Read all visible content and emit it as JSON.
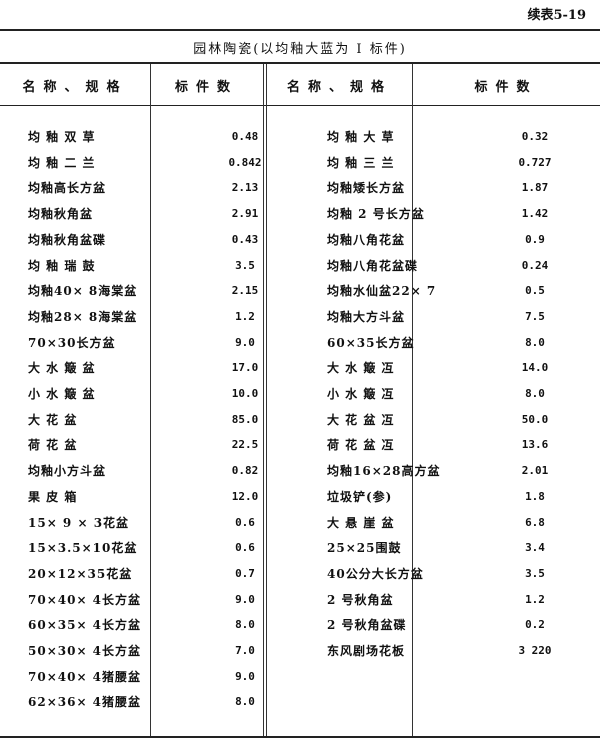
{
  "table_label": "续表5-19",
  "title": "园林陶瓷(以均釉大蓝为 I 标件)",
  "headers": {
    "name": "名称、规格",
    "value": "标件数"
  },
  "left_rows": [
    {
      "name": "均 釉 双 草",
      "value": "0.48"
    },
    {
      "name": "均 釉 二 兰",
      "value": "0.842"
    },
    {
      "name": "均釉高长方盆",
      "value": "2.13"
    },
    {
      "name": "均釉秋角盆",
      "value": "2.91"
    },
    {
      "name": "均釉秋角盆碟",
      "value": "0.43"
    },
    {
      "name": "均 釉 瑞 鼓",
      "value": "3.5"
    },
    {
      "name": "均釉40× 8海棠盆",
      "value": "2.15"
    },
    {
      "name": "均釉28× 8海棠盆",
      "value": "1.2"
    },
    {
      "name": "70×30长方盆",
      "value": "9.0"
    },
    {
      "name": "大 水 簸 盆",
      "value": "17.0"
    },
    {
      "name": "小 水 簸 盆",
      "value": "10.0"
    },
    {
      "name": "大  花  盆",
      "value": "85.0"
    },
    {
      "name": "荷  花  盆",
      "value": "22.5"
    },
    {
      "name": "均釉小方斗盆",
      "value": "0.82"
    },
    {
      "name": "果  皮  箱",
      "value": "12.0"
    },
    {
      "name": "15× 9 × 3花盆",
      "value": "0.6"
    },
    {
      "name": "15×3.5×10花盆",
      "value": "0.6"
    },
    {
      "name": "20×12×35花盆",
      "value": "0.7"
    },
    {
      "name": "70×40× 4长方盆",
      "value": "9.0"
    },
    {
      "name": "60×35× 4长方盆",
      "value": "8.0"
    },
    {
      "name": "50×30× 4长方盆",
      "value": "7.0"
    },
    {
      "name": "70×40× 4猪腰盆",
      "value": "9.0"
    },
    {
      "name": "62×36× 4猪腰盆",
      "value": "8.0"
    }
  ],
  "right_rows": [
    {
      "name": "均 釉 大 草",
      "value": "0.32"
    },
    {
      "name": "均 釉 三 兰",
      "value": "0.727"
    },
    {
      "name": "均釉矮长方盆",
      "value": "1.87"
    },
    {
      "name": "均釉 2 号长方盆",
      "value": "1.42"
    },
    {
      "name": "均釉八角花盆",
      "value": "0.9"
    },
    {
      "name": "均釉八角花盆碟",
      "value": "0.24"
    },
    {
      "name": "均釉水仙盆22× 7",
      "value": "0.5"
    },
    {
      "name": "均釉大方斗盆",
      "value": "7.5"
    },
    {
      "name": "60×35长方盆",
      "value": "8.0"
    },
    {
      "name": "大 水 簸 冱",
      "value": "14.0"
    },
    {
      "name": "小 水 簸 冱",
      "value": "8.0"
    },
    {
      "name": "大 花 盆 冱",
      "value": "50.0"
    },
    {
      "name": "荷 花 盆 冱",
      "value": "13.6"
    },
    {
      "name": "均釉16×28高方盆",
      "value": "2.01"
    },
    {
      "name": "垃圾铲(参)",
      "value": "1.8"
    },
    {
      "name": "大 悬 崖 盆",
      "value": "6.8"
    },
    {
      "name": "25×25围鼓",
      "value": "3.4"
    },
    {
      "name": "40公分大长方盆",
      "value": "3.5"
    },
    {
      "name": "2 号秋角盆",
      "value": "1.2"
    },
    {
      "name": "2 号秋角盆碟",
      "value": "0.2"
    },
    {
      "name": "东风剧场花板",
      "value": "3 220"
    }
  ]
}
